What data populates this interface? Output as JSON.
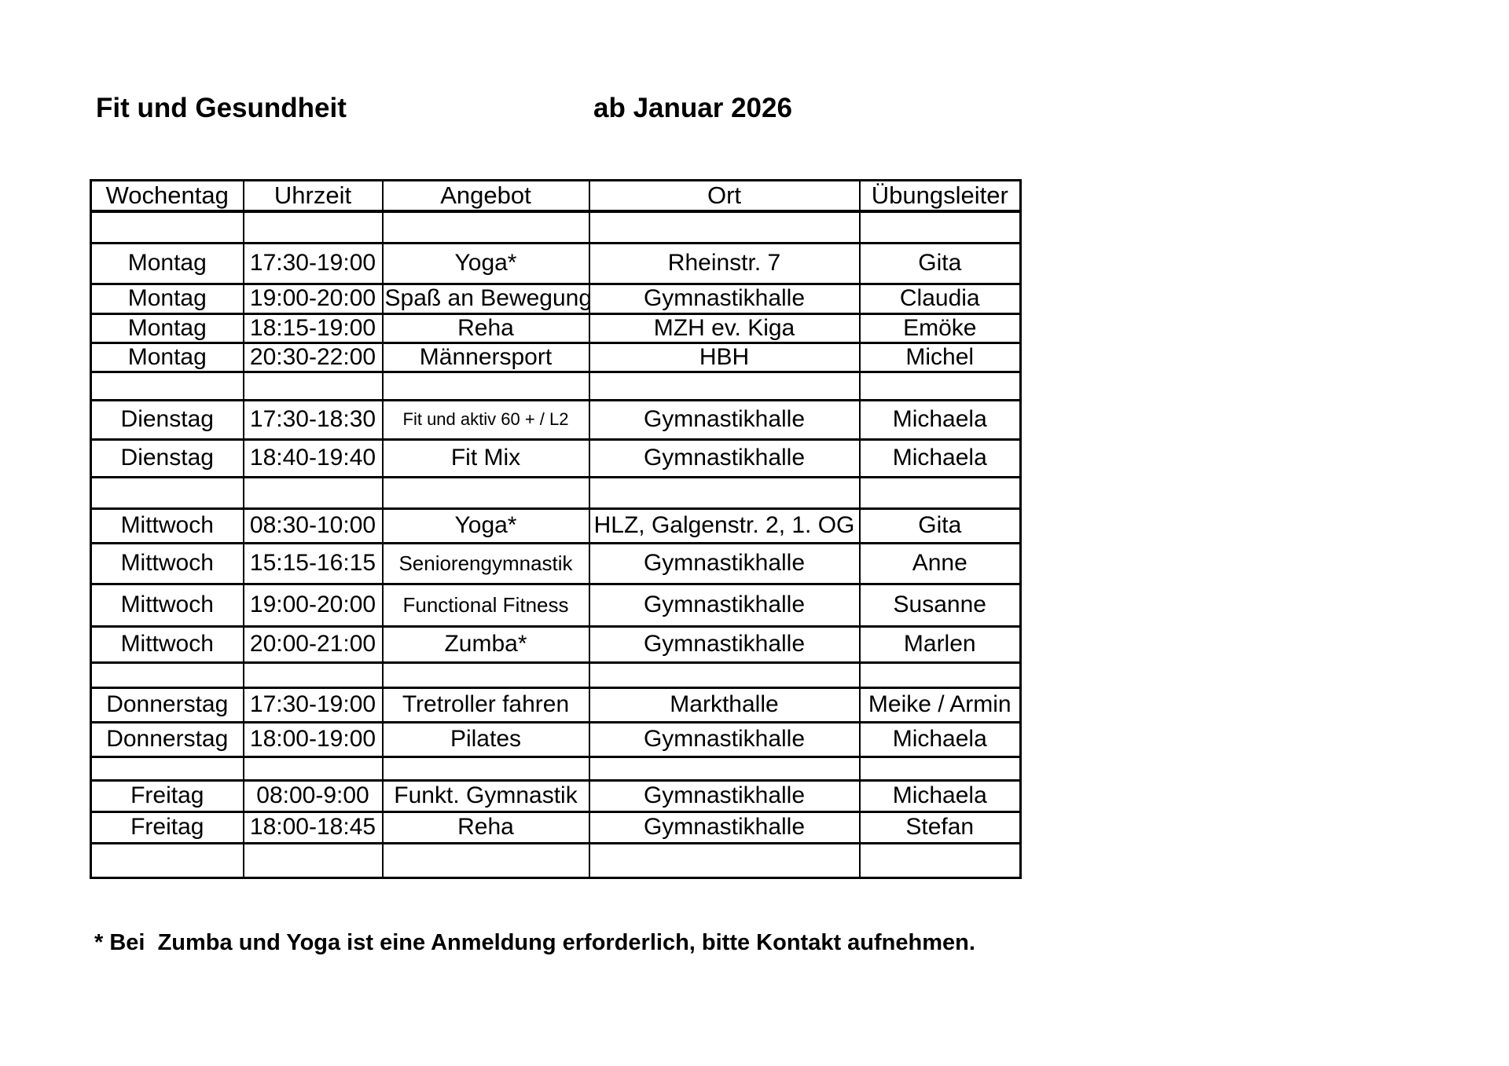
{
  "header": {
    "title": "Fit und Gesundheit",
    "subtitle": "ab Januar 2026"
  },
  "table": {
    "columns": [
      "Wochentag",
      "Uhrzeit",
      "Angebot",
      "Ort",
      "Übungsleiter"
    ],
    "rows": [
      {
        "type": "spacer"
      },
      {
        "type": "data",
        "day": "Montag",
        "time": "17:30-19:00",
        "offer": "Yoga*",
        "place": "Rheinstr. 7",
        "leader": "Gita"
      },
      {
        "type": "data",
        "day": "Montag",
        "time": "19:00-20:00",
        "offer": "Spaß an Bewegung",
        "place": "Gymnastikhalle",
        "leader": "Claudia"
      },
      {
        "type": "data",
        "day": "Montag",
        "time": "18:15-19:00",
        "offer": "Reha",
        "place": "MZH ev. Kiga",
        "leader": "Emöke"
      },
      {
        "type": "data",
        "day": "Montag",
        "time": "20:30-22:00",
        "offer": "Männersport",
        "place": "HBH",
        "leader": "Michel"
      },
      {
        "type": "spacer"
      },
      {
        "type": "data",
        "day": "Dienstag",
        "time": "17:30-18:30",
        "offer": "Fit und aktiv 60 + / L2",
        "offer_size": "small",
        "place": "Gymnastikhalle",
        "leader": "Michaela"
      },
      {
        "type": "data",
        "day": "Dienstag",
        "time": "18:40-19:40",
        "offer": "Fit Mix",
        "place": "Gymnastikhalle",
        "leader": "Michaela"
      },
      {
        "type": "spacer"
      },
      {
        "type": "data",
        "day": "Mittwoch",
        "time": "08:30-10:00",
        "offer": "Yoga*",
        "place": "HLZ, Galgenstr. 2, 1. OG",
        "leader": "Gita"
      },
      {
        "type": "data",
        "day": "Mittwoch",
        "time": "15:15-16:15",
        "offer": "Seniorengymnastik",
        "offer_size": "medium",
        "place": "Gymnastikhalle",
        "leader": "Anne"
      },
      {
        "type": "data",
        "day": "Mittwoch",
        "time": "19:00-20:00",
        "offer": "Functional Fitness",
        "offer_size": "medium",
        "place": "Gymnastikhalle",
        "leader": "Susanne"
      },
      {
        "type": "data",
        "day": "Mittwoch",
        "time": "20:00-21:00",
        "offer": "Zumba*",
        "place": "Gymnastikhalle",
        "leader": "Marlen"
      },
      {
        "type": "spacer"
      },
      {
        "type": "data",
        "day": "Donnerstag",
        "time": "17:30-19:00",
        "offer": "Tretroller fahren",
        "place": "Markthalle",
        "leader": "Meike / Armin"
      },
      {
        "type": "data",
        "day": "Donnerstag",
        "time": "18:00-19:00",
        "offer": "Pilates",
        "place": "Gymnastikhalle",
        "leader": "Michaela"
      },
      {
        "type": "spacer"
      },
      {
        "type": "data",
        "day": "Freitag",
        "time": "08:00-9:00",
        "offer": "Funkt. Gymnastik",
        "place": "Gymnastikhalle",
        "leader": "Michaela"
      },
      {
        "type": "data",
        "day": "Freitag",
        "time": "18:00-18:45",
        "offer": "Reha",
        "place": "Gymnastikhalle",
        "leader": "Stefan"
      },
      {
        "type": "spacer"
      }
    ]
  },
  "footnote": "* Bei  Zumba und Yoga ist eine Anmeldung erforderlich, bitte Kontakt aufnehmen."
}
